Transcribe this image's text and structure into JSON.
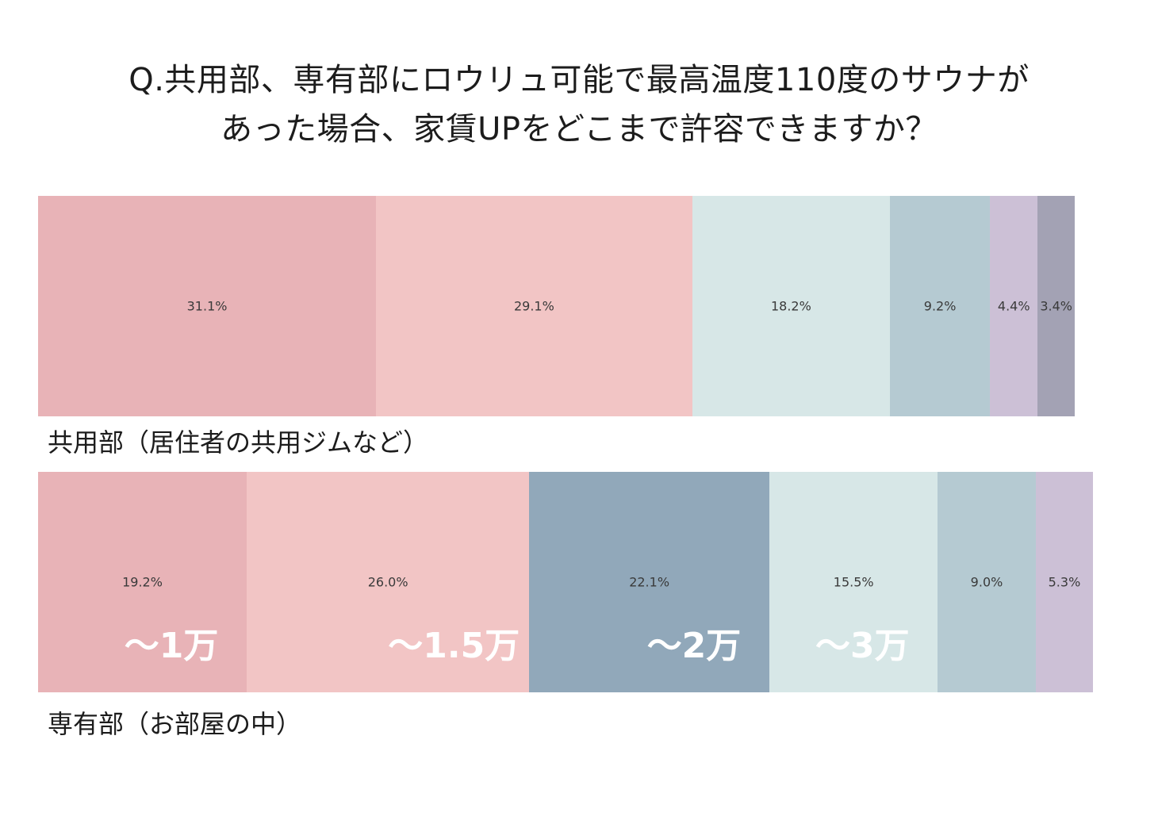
{
  "title": {
    "line1": "Q.共用部、専有部にロウリュ可能で最高温度110度のサウナが",
    "line2": "あった場合、家賃UPをどこまで許容できますか？"
  },
  "chart_data": [
    {
      "type": "bar",
      "orientation": "horizontal-stacked",
      "category": "共用部（居住者の共用ジムなど）",
      "values": [
        31.1,
        29.1,
        18.2,
        9.2,
        4.4,
        3.4
      ],
      "labels": [
        "31.1%",
        "29.1%",
        "18.2%",
        "9.2%",
        "4.4%",
        "3.4%"
      ],
      "colors": [
        "#e8b3b7",
        "#f2c5c5",
        "#d7e7e7",
        "#b5cad2",
        "#ccc0d6",
        "#a3a2b4"
      ]
    },
    {
      "type": "bar",
      "orientation": "horizontal-stacked",
      "category": "専有部（お部屋の中）",
      "values": [
        19.2,
        26.0,
        22.1,
        15.5,
        9.0,
        5.3
      ],
      "labels": [
        "19.2%",
        "26.0%",
        "22.1%",
        "15.5%",
        "9.0%",
        "5.3%"
      ],
      "colors": [
        "#e8b3b7",
        "#f2c5c5",
        "#91a8ba",
        "#d7e7e7",
        "#b5cad2",
        "#ccc0d6"
      ],
      "annotations": [
        "〜1万",
        "〜1.5万",
        "〜2万",
        "〜3万"
      ]
    }
  ]
}
